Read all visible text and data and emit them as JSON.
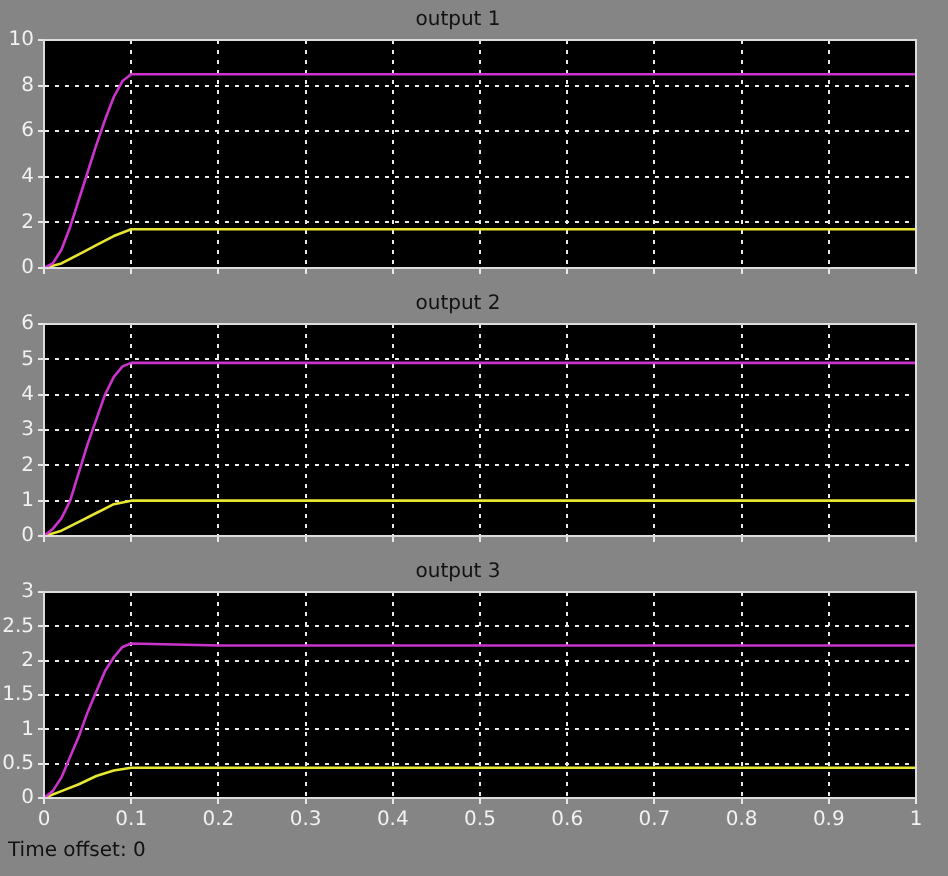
{
  "chart_data": [
    {
      "type": "line",
      "title": "output 1",
      "x": [
        0,
        0.01,
        0.02,
        0.03,
        0.04,
        0.05,
        0.06,
        0.07,
        0.08,
        0.09,
        0.1,
        1
      ],
      "xlim": [
        0,
        1
      ],
      "xticks": [
        0,
        0.1,
        0.2,
        0.3,
        0.4,
        0.5,
        0.6,
        0.7,
        0.8,
        0.9,
        1
      ],
      "ylim": [
        0,
        10
      ],
      "yticks": [
        0,
        2,
        4,
        6,
        8,
        10
      ],
      "grid": true,
      "tick_labels": "y",
      "legend": false,
      "marker": "none",
      "line_style": "solid",
      "series": [
        {
          "color": "#cc33cc",
          "values": [
            0,
            0.2,
            0.8,
            1.8,
            3.0,
            4.2,
            5.4,
            6.5,
            7.5,
            8.2,
            8.5,
            8.5
          ]
        },
        {
          "color": "#e6e633",
          "x": [
            0,
            0.02,
            0.04,
            0.06,
            0.08,
            0.1,
            1
          ],
          "values": [
            0,
            0.2,
            0.6,
            1.0,
            1.4,
            1.7,
            1.7
          ]
        }
      ]
    },
    {
      "type": "line",
      "title": "output 2",
      "x": [
        0,
        0.01,
        0.02,
        0.03,
        0.04,
        0.05,
        0.06,
        0.07,
        0.08,
        0.09,
        0.1,
        1
      ],
      "xlim": [
        0,
        1
      ],
      "xticks": [
        0,
        0.1,
        0.2,
        0.3,
        0.4,
        0.5,
        0.6,
        0.7,
        0.8,
        0.9,
        1
      ],
      "ylim": [
        0,
        6
      ],
      "yticks": [
        0,
        1,
        2,
        3,
        4,
        5,
        6
      ],
      "grid": true,
      "tick_labels": "y",
      "legend": false,
      "marker": "none",
      "line_style": "solid",
      "series": [
        {
          "color": "#cc33cc",
          "values": [
            0,
            0.2,
            0.5,
            1.0,
            1.8,
            2.6,
            3.3,
            4.0,
            4.5,
            4.8,
            4.9,
            4.9
          ]
        },
        {
          "color": "#e6e633",
          "x": [
            0,
            0.02,
            0.04,
            0.06,
            0.08,
            0.1,
            1
          ],
          "values": [
            0,
            0.15,
            0.4,
            0.65,
            0.9,
            1.0,
            1.0
          ]
        }
      ]
    },
    {
      "type": "line",
      "title": "output 3",
      "x": [
        0,
        0.01,
        0.02,
        0.03,
        0.04,
        0.05,
        0.06,
        0.07,
        0.08,
        0.09,
        0.1,
        0.2,
        1
      ],
      "xlim": [
        0,
        1
      ],
      "xticks": [
        0,
        0.1,
        0.2,
        0.3,
        0.4,
        0.5,
        0.6,
        0.7,
        0.8,
        0.9,
        1
      ],
      "ylim": [
        0,
        3
      ],
      "yticks": [
        0,
        0.5,
        1,
        1.5,
        2,
        2.5,
        3
      ],
      "grid": true,
      "legend": false,
      "marker": "none",
      "line_style": "solid",
      "annotations": [
        "Time offset:  0"
      ],
      "series": [
        {
          "color": "#cc33cc",
          "values": [
            0,
            0.1,
            0.3,
            0.6,
            0.9,
            1.25,
            1.55,
            1.85,
            2.05,
            2.2,
            2.25,
            2.22,
            2.22
          ]
        },
        {
          "color": "#e6e633",
          "x": [
            0,
            0.02,
            0.04,
            0.06,
            0.08,
            0.1,
            1
          ],
          "values": [
            0,
            0.1,
            0.2,
            0.32,
            0.4,
            0.44,
            0.44
          ]
        }
      ]
    }
  ]
}
